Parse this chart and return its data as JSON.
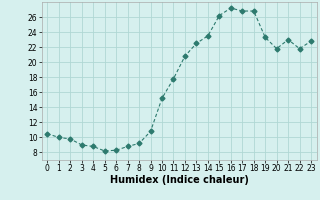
{
  "x": [
    0,
    1,
    2,
    3,
    4,
    5,
    6,
    7,
    8,
    9,
    10,
    11,
    12,
    13,
    14,
    15,
    16,
    17,
    18,
    19,
    20,
    21,
    22,
    23
  ],
  "y": [
    10.5,
    10.0,
    9.8,
    9.0,
    8.8,
    8.2,
    8.3,
    8.8,
    9.2,
    10.8,
    15.2,
    17.8,
    20.8,
    22.5,
    23.5,
    26.2,
    27.2,
    26.8,
    26.8,
    23.3,
    21.8,
    23.0,
    21.8,
    22.8
  ],
  "line_color": "#2d7a6e",
  "marker": "D",
  "marker_size": 2.5,
  "bg_color": "#d6f0ee",
  "grid_color": "#b0d8d4",
  "xlabel": "Humidex (Indice chaleur)",
  "xlim": [
    -0.5,
    23.5
  ],
  "ylim": [
    7,
    28
  ],
  "yticks": [
    8,
    10,
    12,
    14,
    16,
    18,
    20,
    22,
    24,
    26
  ],
  "xticks": [
    0,
    1,
    2,
    3,
    4,
    5,
    6,
    7,
    8,
    9,
    10,
    11,
    12,
    13,
    14,
    15,
    16,
    17,
    18,
    19,
    20,
    21,
    22,
    23
  ],
  "tick_fontsize": 5.5,
  "xlabel_fontsize": 7.0
}
